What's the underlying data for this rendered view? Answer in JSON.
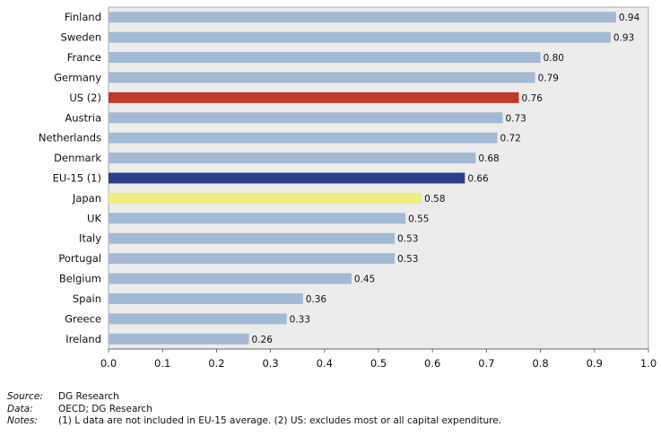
{
  "chart_data": {
    "type": "bar",
    "orientation": "horizontal",
    "categories": [
      "Finland",
      "Sweden",
      "France",
      "Germany",
      "US (2)",
      "Austria",
      "Netherlands",
      "Denmark",
      "EU-15 (1)",
      "Japan",
      "UK",
      "Italy",
      "Portugal",
      "Belgium",
      "Spain",
      "Greece",
      "Ireland"
    ],
    "values": [
      0.94,
      0.93,
      0.8,
      0.79,
      0.76,
      0.73,
      0.72,
      0.68,
      0.66,
      0.58,
      0.55,
      0.53,
      0.53,
      0.45,
      0.36,
      0.33,
      0.26
    ],
    "value_labels": [
      "0.94",
      "0.93",
      "0.80",
      "0.79",
      "0.76",
      "0.73",
      "0.72",
      "0.68",
      "0.66",
      "0.58",
      "0.55",
      "0.53",
      "0.53",
      "0.45",
      "0.36",
      "0.33",
      "0.26"
    ],
    "bar_colors": [
      "#a3b9d4",
      "#a3b9d4",
      "#a3b9d4",
      "#a3b9d4",
      "#c0392b",
      "#a3b9d4",
      "#a3b9d4",
      "#a3b9d4",
      "#2e3c8c",
      "#f0ec7d",
      "#a3b9d4",
      "#a3b9d4",
      "#a3b9d4",
      "#a3b9d4",
      "#a3b9d4",
      "#a3b9d4",
      "#a3b9d4"
    ],
    "xlim": [
      0,
      1.0
    ],
    "x_ticks": [
      "0.0",
      "0.1",
      "0.2",
      "0.3",
      "0.4",
      "0.5",
      "0.6",
      "0.7",
      "0.8",
      "0.9",
      "1.0"
    ],
    "plot_background": "#ececec",
    "grid": false
  },
  "footer": {
    "source_key": "Source:",
    "source_value": "DG Research",
    "data_key": "Data:",
    "data_value": "OECD; DG Research",
    "notes_key": "Notes:",
    "notes_value": "(1) L data are not included in EU-15 average. (2) US: excludes most or all capital expenditure."
  }
}
